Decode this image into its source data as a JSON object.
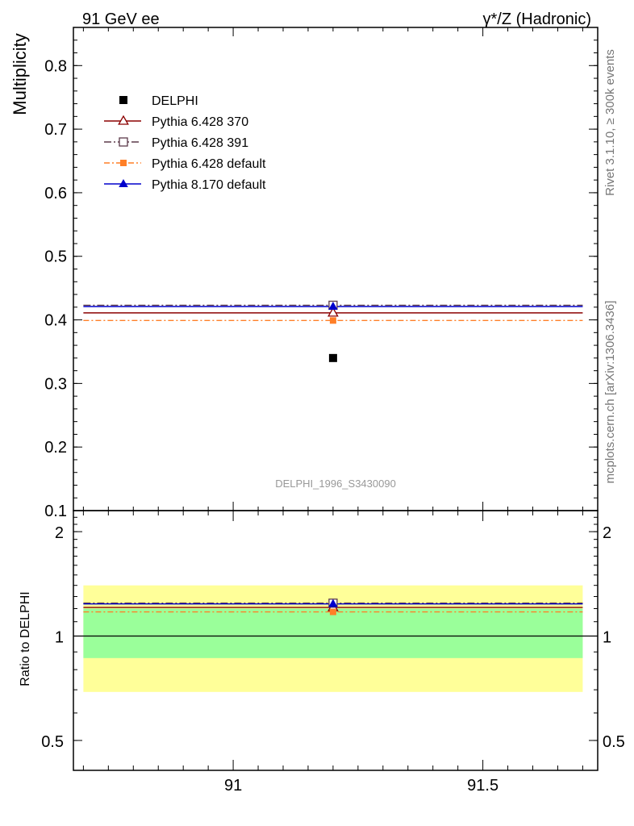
{
  "header": {
    "left": "91 GeV ee",
    "right": "γ*/Z (Hadronic)"
  },
  "side_labels": {
    "rivet": "Rivet 3.1.10, ≥ 300k events",
    "mcplots": "mcplots.cern.ch [arXiv:1306.3436]"
  },
  "colors": {
    "delphi": "#000000",
    "p6_370": "#8b0000",
    "p6_391": "#5c3a4a",
    "p6_default": "#ff7f27",
    "p8_default": "#0000cc",
    "band_inner": "#9aff9a",
    "band_outer": "#ffff99"
  },
  "chart_data": [
    {
      "type": "scatter",
      "panel": "main",
      "ylabel": "Multiplicity",
      "annotation": "DELPHI_1996_S3430090",
      "xlim": [
        90.68,
        91.73
      ],
      "ylim": [
        0.1,
        0.86
      ],
      "bin": [
        90.7,
        91.7
      ],
      "x_point": 91.2,
      "yticks": [
        "0.1",
        "0.2",
        "0.3",
        "0.4",
        "0.5",
        "0.6",
        "0.7",
        "0.8"
      ],
      "ytick_values": [
        0.1,
        0.2,
        0.3,
        0.4,
        0.5,
        0.6,
        0.7,
        0.8
      ],
      "legend_position": "top-left",
      "series": [
        {
          "name": "DELPHI",
          "value": 0.34
        },
        {
          "name": "Pythia 6.428 370",
          "value": 0.411
        },
        {
          "name": "Pythia 6.428 391",
          "value": 0.423
        },
        {
          "name": "Pythia 6.428 default",
          "value": 0.399
        },
        {
          "name": "Pythia 8.170 default",
          "value": 0.421
        }
      ]
    },
    {
      "type": "scatter",
      "panel": "ratio",
      "ylabel": "Ratio to DELPHI",
      "xlim": [
        90.68,
        91.73
      ],
      "ylim": [
        0.41,
        2.3
      ],
      "log_y": true,
      "bin": [
        90.7,
        91.7
      ],
      "x_point": 91.2,
      "xticks": [
        "91",
        "91.5"
      ],
      "xtick_values": [
        91.0,
        91.5
      ],
      "yticks": [
        "0.5",
        "1",
        "2"
      ],
      "ytick_values": [
        0.5,
        1,
        2
      ],
      "band_inner": [
        0.864,
        1.2
      ],
      "band_outer": [
        0.69,
        1.4
      ],
      "series": [
        {
          "name": "Pythia 6.428 370",
          "value": 1.209
        },
        {
          "name": "Pythia 6.428 391",
          "value": 1.244
        },
        {
          "name": "Pythia 6.428 default",
          "value": 1.174
        },
        {
          "name": "Pythia 8.170 default",
          "value": 1.238
        }
      ]
    }
  ]
}
